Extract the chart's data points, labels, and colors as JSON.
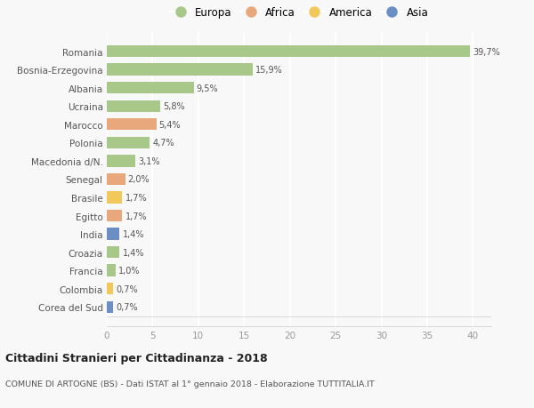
{
  "countries": [
    "Romania",
    "Bosnia-Erzegovina",
    "Albania",
    "Ucraina",
    "Marocco",
    "Polonia",
    "Macedonia d/N.",
    "Senegal",
    "Brasile",
    "Egitto",
    "India",
    "Croazia",
    "Francia",
    "Colombia",
    "Corea del Sud"
  ],
  "values": [
    39.7,
    15.9,
    9.5,
    5.8,
    5.4,
    4.7,
    3.1,
    2.0,
    1.7,
    1.7,
    1.4,
    1.4,
    1.0,
    0.7,
    0.7
  ],
  "labels": [
    "39,7%",
    "15,9%",
    "9,5%",
    "5,8%",
    "5,4%",
    "4,7%",
    "3,1%",
    "2,0%",
    "1,7%",
    "1,7%",
    "1,4%",
    "1,4%",
    "1,0%",
    "0,7%",
    "0,7%"
  ],
  "continents": [
    "Europa",
    "Europa",
    "Europa",
    "Europa",
    "Africa",
    "Europa",
    "Europa",
    "Africa",
    "America",
    "Africa",
    "Asia",
    "Europa",
    "Europa",
    "America",
    "Asia"
  ],
  "colors": {
    "Europa": "#a8c88a",
    "Africa": "#e8a87c",
    "America": "#f0c95a",
    "Asia": "#6b8ec4"
  },
  "legend_order": [
    "Europa",
    "Africa",
    "America",
    "Asia"
  ],
  "xlim": [
    0,
    42
  ],
  "xticks": [
    0,
    5,
    10,
    15,
    20,
    25,
    30,
    35,
    40
  ],
  "title": "Cittadini Stranieri per Cittadinanza - 2018",
  "subtitle": "COMUNE DI ARTOGNE (BS) - Dati ISTAT al 1° gennaio 2018 - Elaborazione TUTTITALIA.IT",
  "background_color": "#f8f8f8",
  "grid_color": "#ffffff",
  "bar_height": 0.65
}
